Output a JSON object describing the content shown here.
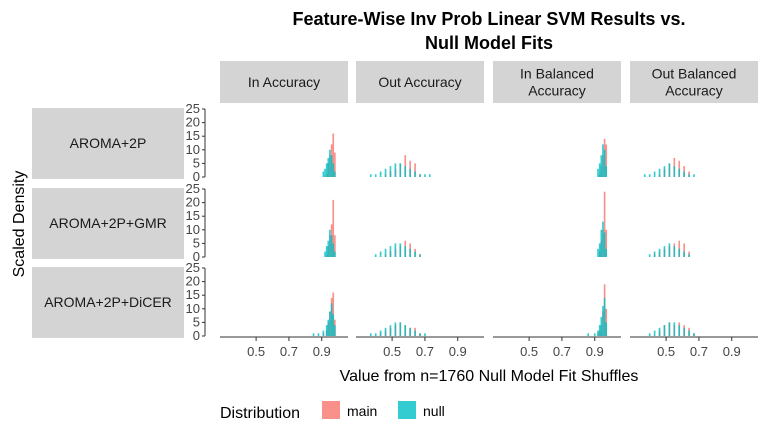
{
  "chart_data": {
    "type": "histogram-facet",
    "title_line1": "Feature-Wise Inv Prob Linear SVM Results vs.",
    "title_line2": "Null Model Fits",
    "xlabel": "Value from n=1760 Null Model Fit Shuffles",
    "ylabel": "Scaled Density",
    "columns": [
      {
        "lines": [
          "In Accuracy"
        ]
      },
      {
        "lines": [
          "Out Accuracy"
        ]
      },
      {
        "lines": [
          "In Balanced",
          "Accuracy"
        ]
      },
      {
        "lines": [
          "Out Balanced",
          "Accuracy"
        ]
      }
    ],
    "rows": [
      "AROMA+2P",
      "AROMA+2P+GMR",
      "AROMA+2P+DiCER"
    ],
    "x_ticks": [
      0.5,
      0.7,
      0.9
    ],
    "x_tick_labels": [
      "0.5",
      "0.7",
      "0.9"
    ],
    "xlim": [
      0.28,
      1.06
    ],
    "y_ticks": [
      0,
      5,
      10,
      15,
      20,
      25
    ],
    "y_tick_labels": [
      "0",
      "5",
      "10",
      "15",
      "20",
      "25"
    ],
    "ylim": [
      0,
      25
    ],
    "legend": {
      "title": "Distribution",
      "position": "bottom",
      "entries": [
        {
          "name": "main",
          "color": "#f8766d"
        },
        {
          "name": "null",
          "color": "#00bfc4"
        }
      ]
    },
    "bin_width": 0.01,
    "panels": [
      [
        {
          "bins": [
            {
              "x": 0.91,
              "null": 2,
              "main": 0
            },
            {
              "x": 0.92,
              "null": 3,
              "main": 0
            },
            {
              "x": 0.93,
              "null": 5,
              "main": 1
            },
            {
              "x": 0.94,
              "null": 7,
              "main": 5
            },
            {
              "x": 0.95,
              "null": 10,
              "main": 8
            },
            {
              "x": 0.96,
              "null": 8,
              "main": 12
            },
            {
              "x": 0.97,
              "null": 5,
              "main": 16
            },
            {
              "x": 0.98,
              "null": 2,
              "main": 9
            }
          ]
        },
        {
          "bins": [
            {
              "x": 0.37,
              "null": 1,
              "main": 0
            },
            {
              "x": 0.4,
              "null": 1,
              "main": 0
            },
            {
              "x": 0.43,
              "null": 2,
              "main": 0
            },
            {
              "x": 0.46,
              "null": 3,
              "main": 1
            },
            {
              "x": 0.49,
              "null": 4,
              "main": 2
            },
            {
              "x": 0.52,
              "null": 5,
              "main": 3
            },
            {
              "x": 0.55,
              "null": 5,
              "main": 5
            },
            {
              "x": 0.58,
              "null": 4,
              "main": 8
            },
            {
              "x": 0.61,
              "null": 3,
              "main": 6
            },
            {
              "x": 0.64,
              "null": 2,
              "main": 5
            },
            {
              "x": 0.67,
              "null": 1,
              "main": 1
            },
            {
              "x": 0.7,
              "null": 1,
              "main": 0
            },
            {
              "x": 0.73,
              "null": 1,
              "main": 0
            }
          ]
        },
        {
          "bins": [
            {
              "x": 0.92,
              "null": 3,
              "main": 0
            },
            {
              "x": 0.93,
              "null": 5,
              "main": 1
            },
            {
              "x": 0.94,
              "null": 8,
              "main": 4
            },
            {
              "x": 0.95,
              "null": 12,
              "main": 8
            },
            {
              "x": 0.96,
              "null": 10,
              "main": 14
            },
            {
              "x": 0.97,
              "null": 4,
              "main": 12
            }
          ]
        },
        {
          "bins": [
            {
              "x": 0.37,
              "null": 1,
              "main": 0
            },
            {
              "x": 0.4,
              "null": 1,
              "main": 0
            },
            {
              "x": 0.43,
              "null": 2,
              "main": 0
            },
            {
              "x": 0.46,
              "null": 3,
              "main": 1
            },
            {
              "x": 0.49,
              "null": 4,
              "main": 3
            },
            {
              "x": 0.52,
              "null": 5,
              "main": 5
            },
            {
              "x": 0.55,
              "null": 4,
              "main": 7
            },
            {
              "x": 0.58,
              "null": 3,
              "main": 6
            },
            {
              "x": 0.61,
              "null": 2,
              "main": 4
            },
            {
              "x": 0.64,
              "null": 1,
              "main": 2
            },
            {
              "x": 0.67,
              "null": 1,
              "main": 0
            }
          ]
        }
      ],
      [
        {
          "bins": [
            {
              "x": 0.92,
              "null": 2,
              "main": 0
            },
            {
              "x": 0.93,
              "null": 4,
              "main": 1
            },
            {
              "x": 0.94,
              "null": 6,
              "main": 4
            },
            {
              "x": 0.95,
              "null": 10,
              "main": 8
            },
            {
              "x": 0.96,
              "null": 8,
              "main": 12
            },
            {
              "x": 0.97,
              "null": 5,
              "main": 21
            },
            {
              "x": 0.98,
              "null": 2,
              "main": 8
            }
          ]
        },
        {
          "bins": [
            {
              "x": 0.4,
              "null": 1,
              "main": 0
            },
            {
              "x": 0.43,
              "null": 2,
              "main": 0
            },
            {
              "x": 0.46,
              "null": 3,
              "main": 1
            },
            {
              "x": 0.49,
              "null": 4,
              "main": 2
            },
            {
              "x": 0.52,
              "null": 5,
              "main": 3
            },
            {
              "x": 0.55,
              "null": 5,
              "main": 4
            },
            {
              "x": 0.58,
              "null": 4,
              "main": 6
            },
            {
              "x": 0.61,
              "null": 3,
              "main": 5
            },
            {
              "x": 0.64,
              "null": 2,
              "main": 3
            },
            {
              "x": 0.67,
              "null": 1,
              "main": 1
            }
          ]
        },
        {
          "bins": [
            {
              "x": 0.92,
              "null": 3,
              "main": 0
            },
            {
              "x": 0.93,
              "null": 5,
              "main": 2
            },
            {
              "x": 0.94,
              "null": 10,
              "main": 6
            },
            {
              "x": 0.95,
              "null": 13,
              "main": 10
            },
            {
              "x": 0.96,
              "null": 9,
              "main": 24
            },
            {
              "x": 0.97,
              "null": 3,
              "main": 10
            }
          ]
        },
        {
          "bins": [
            {
              "x": 0.4,
              "null": 1,
              "main": 0
            },
            {
              "x": 0.43,
              "null": 2,
              "main": 1
            },
            {
              "x": 0.46,
              "null": 3,
              "main": 2
            },
            {
              "x": 0.49,
              "null": 4,
              "main": 3
            },
            {
              "x": 0.52,
              "null": 5,
              "main": 4
            },
            {
              "x": 0.55,
              "null": 4,
              "main": 5
            },
            {
              "x": 0.58,
              "null": 3,
              "main": 6
            },
            {
              "x": 0.61,
              "null": 2,
              "main": 5
            },
            {
              "x": 0.64,
              "null": 1,
              "main": 2
            }
          ]
        }
      ],
      [
        {
          "bins": [
            {
              "x": 0.85,
              "null": 1,
              "main": 0
            },
            {
              "x": 0.88,
              "null": 1,
              "main": 0
            },
            {
              "x": 0.91,
              "null": 2,
              "main": 1
            },
            {
              "x": 0.93,
              "null": 4,
              "main": 2
            },
            {
              "x": 0.94,
              "null": 6,
              "main": 5
            },
            {
              "x": 0.95,
              "null": 9,
              "main": 9
            },
            {
              "x": 0.96,
              "null": 12,
              "main": 14
            },
            {
              "x": 0.97,
              "null": 8,
              "main": 16
            },
            {
              "x": 0.98,
              "null": 4,
              "main": 6
            }
          ]
        },
        {
          "bins": [
            {
              "x": 0.37,
              "null": 1,
              "main": 0
            },
            {
              "x": 0.4,
              "null": 1,
              "main": 0
            },
            {
              "x": 0.43,
              "null": 2,
              "main": 1
            },
            {
              "x": 0.46,
              "null": 3,
              "main": 2
            },
            {
              "x": 0.49,
              "null": 4,
              "main": 3
            },
            {
              "x": 0.52,
              "null": 5,
              "main": 4
            },
            {
              "x": 0.55,
              "null": 5,
              "main": 5
            },
            {
              "x": 0.58,
              "null": 4,
              "main": 4
            },
            {
              "x": 0.61,
              "null": 3,
              "main": 3
            },
            {
              "x": 0.64,
              "null": 2,
              "main": 3
            },
            {
              "x": 0.67,
              "null": 1,
              "main": 1
            },
            {
              "x": 0.7,
              "null": 1,
              "main": 0
            }
          ]
        },
        {
          "bins": [
            {
              "x": 0.86,
              "null": 1,
              "main": 0
            },
            {
              "x": 0.9,
              "null": 1,
              "main": 0
            },
            {
              "x": 0.92,
              "null": 2,
              "main": 1
            },
            {
              "x": 0.93,
              "null": 4,
              "main": 2
            },
            {
              "x": 0.94,
              "null": 7,
              "main": 4
            },
            {
              "x": 0.95,
              "null": 11,
              "main": 9
            },
            {
              "x": 0.96,
              "null": 14,
              "main": 19
            },
            {
              "x": 0.97,
              "null": 5,
              "main": 10
            }
          ]
        },
        {
          "bins": [
            {
              "x": 0.4,
              "null": 1,
              "main": 0
            },
            {
              "x": 0.43,
              "null": 2,
              "main": 0
            },
            {
              "x": 0.46,
              "null": 3,
              "main": 2
            },
            {
              "x": 0.49,
              "null": 4,
              "main": 4
            },
            {
              "x": 0.52,
              "null": 5,
              "main": 5
            },
            {
              "x": 0.55,
              "null": 5,
              "main": 4
            },
            {
              "x": 0.58,
              "null": 4,
              "main": 5
            },
            {
              "x": 0.61,
              "null": 3,
              "main": 4
            },
            {
              "x": 0.64,
              "null": 2,
              "main": 3
            },
            {
              "x": 0.67,
              "null": 1,
              "main": 1
            }
          ]
        }
      ]
    ]
  }
}
